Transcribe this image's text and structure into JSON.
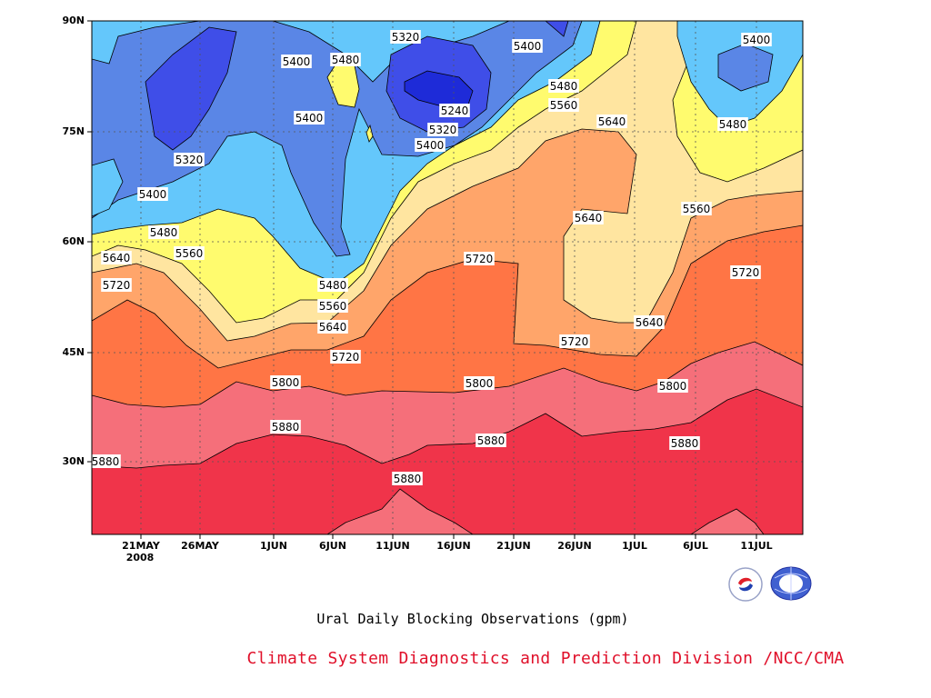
{
  "chart_data": {
    "type": "heatmap",
    "subtype": "filled-contour",
    "title": "Ural Daily Blocking Observations (gpm)",
    "credit": "Climate System Diagnostics and Prediction Division /NCC/CMA",
    "xlabel": "",
    "ylabel": "",
    "x_ticks": [
      "21MAY",
      "26MAY",
      "1JUN",
      "6JUN",
      "11JUN",
      "16JUN",
      "21JUN",
      "26JUN",
      "1JUL",
      "6JUL",
      "11JUL"
    ],
    "x_year": "2008",
    "y_ticks": [
      "90N",
      "75N",
      "60N",
      "45N",
      "30N"
    ],
    "ylim": [
      20,
      90
    ],
    "grid": true,
    "contour_levels": [
      5240,
      5320,
      5400,
      5480,
      5560,
      5640,
      5720,
      5800,
      5880
    ],
    "fill_colors": [
      "#1e2bd8",
      "#3f4ee8",
      "#5a86e6",
      "#64c7fb",
      "#fffb6e",
      "#ffe5a0",
      "#ffa56a",
      "#ff7545",
      "#f56f7a",
      "#f0344a"
    ],
    "contour_labels": [
      "5880",
      "5880",
      "5880",
      "5880",
      "5880",
      "5800",
      "5800",
      "5800",
      "5800",
      "5720",
      "5720",
      "5720",
      "5720",
      "5720",
      "5640",
      "5640",
      "5640",
      "5640",
      "5640",
      "5560",
      "5560",
      "5560",
      "5560",
      "5480",
      "5480",
      "5480",
      "5480",
      "5480",
      "5400",
      "5400",
      "5400",
      "5400",
      "5400",
      "5400",
      "5400",
      "5320",
      "5320",
      "5320",
      "5240"
    ]
  }
}
